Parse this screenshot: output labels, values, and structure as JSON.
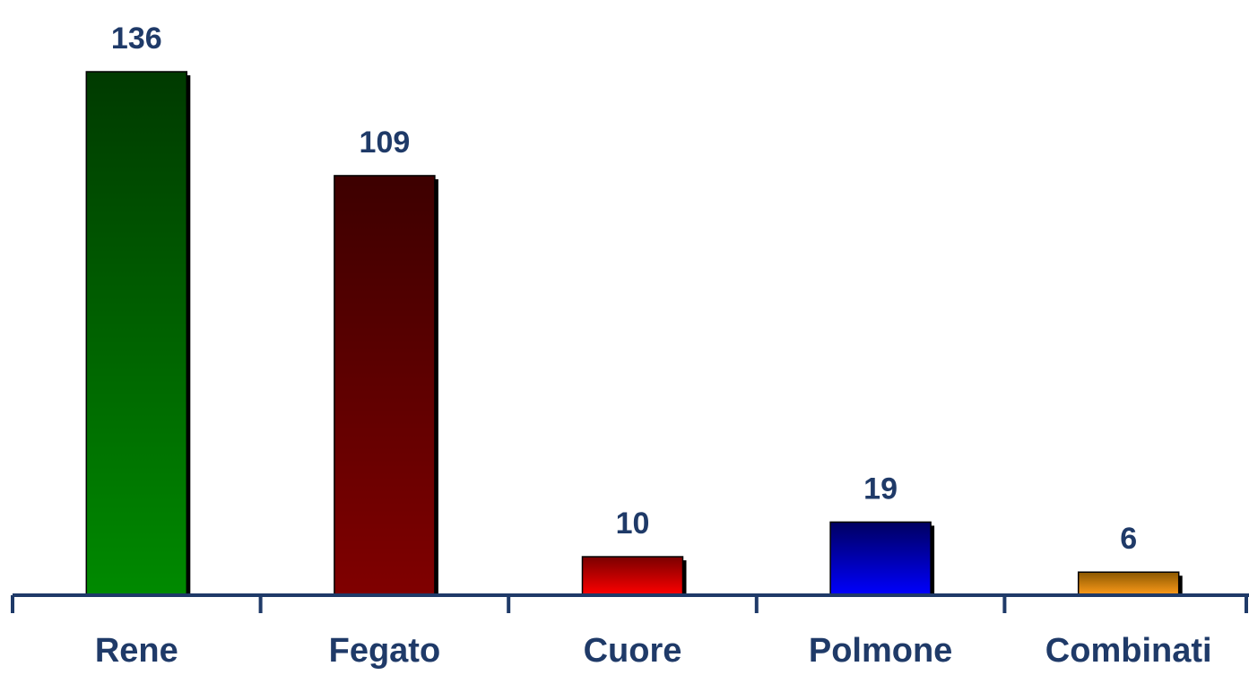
{
  "chart_data": {
    "type": "bar",
    "categories": [
      "Rene",
      "Fegato",
      "Cuore",
      "Polmone",
      "Combinati"
    ],
    "values": [
      136,
      109,
      10,
      19,
      6
    ],
    "data_labels": [
      "136",
      "109",
      "10",
      "19",
      "6"
    ],
    "title": "",
    "xlabel": "",
    "ylabel": "",
    "ylim": [
      0,
      136
    ],
    "grid": false,
    "legend": "none",
    "colors": [
      {
        "top": "#003a00",
        "bottom": "#008a00"
      },
      {
        "top": "#3d0000",
        "bottom": "#800000"
      },
      {
        "top": "#7a0000",
        "bottom": "#ff0000"
      },
      {
        "top": "#000060",
        "bottom": "#0000ff"
      },
      {
        "top": "#8a5800",
        "bottom": "#ff9c1a"
      }
    ],
    "axis_color": "#1f3a68",
    "text_color": "#1f3a68"
  }
}
